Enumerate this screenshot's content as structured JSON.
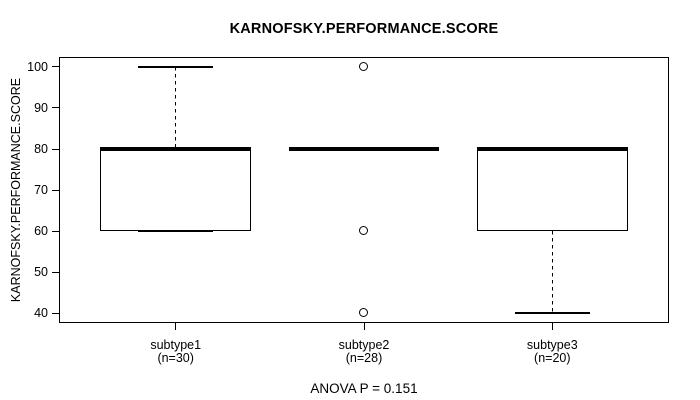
{
  "chart_data": {
    "type": "boxplot",
    "title": "KARNOFSKY.PERFORMANCE.SCORE",
    "ylabel": "KARNOFSKY.PERFORMANCE.SCORE",
    "xlabel": "",
    "annotation": "ANOVA P = 0.151",
    "grid": false,
    "ylim": [
      37.6,
      102.4
    ],
    "xlim": [
      0.38,
      3.62
    ],
    "yticks": [
      40,
      50,
      60,
      70,
      80,
      90,
      100
    ],
    "box_width_units": 0.8,
    "cap_width_units": 0.4,
    "colors": {
      "line": "#000000",
      "background": "#ffffff"
    },
    "groups": [
      {
        "label": "subtype1",
        "sublabel": "(n=30)",
        "n": 30,
        "position": 1,
        "whisker_low": 60,
        "q1": 60,
        "median": 80,
        "q3": 80,
        "whisker_high": 100,
        "outliers": []
      },
      {
        "label": "subtype2",
        "sublabel": "(n=28)",
        "n": 28,
        "position": 2,
        "whisker_low": 80,
        "q1": 80,
        "median": 80,
        "q3": 80,
        "whisker_high": 80,
        "outliers": [
          100,
          60,
          40
        ]
      },
      {
        "label": "subtype3",
        "sublabel": "(n=20)",
        "n": 20,
        "position": 3,
        "whisker_low": 40,
        "q1": 60,
        "median": 80,
        "q3": 80,
        "whisker_high": 80,
        "outliers": []
      }
    ]
  }
}
